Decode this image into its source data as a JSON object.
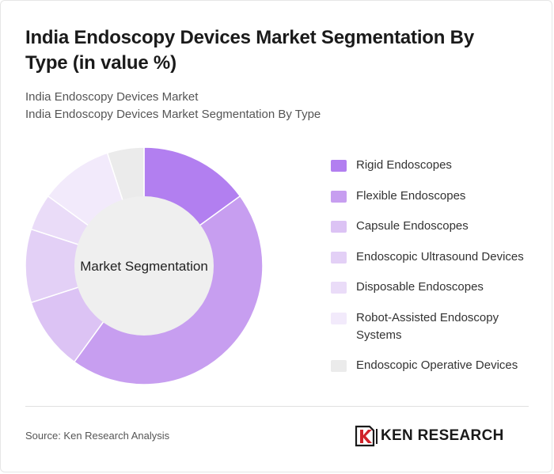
{
  "title": "India Endoscopy Devices Market Segmentation By Type (in value %)",
  "subtitle_lines": [
    "India Endoscopy Devices Market",
    "India Endoscopy Devices Market Segmentation By Type"
  ],
  "source": "Source: Ken Research Analysis",
  "brand": {
    "name": "KEN RESEARCH",
    "logo_icon": "k-logo-icon"
  },
  "chart_data": {
    "type": "pie",
    "variant": "donut",
    "center_label": "Market Segmentation",
    "categories": [
      "Rigid Endoscopes",
      "Flexible Endoscopes",
      "Capsule Endoscopes",
      "Endoscopic Ultrasound Devices",
      "Disposable Endoscopes",
      "Robot-Assisted Endoscopy Systems",
      "Endoscopic Operative Devices"
    ],
    "values": [
      15,
      45,
      10,
      10,
      5,
      10,
      5
    ],
    "colors": [
      "#b27ff0",
      "#c79ef0",
      "#dcc3f4",
      "#e3d0f6",
      "#eadcf8",
      "#f2eafb",
      "#ebebeb"
    ],
    "legend": "right"
  }
}
